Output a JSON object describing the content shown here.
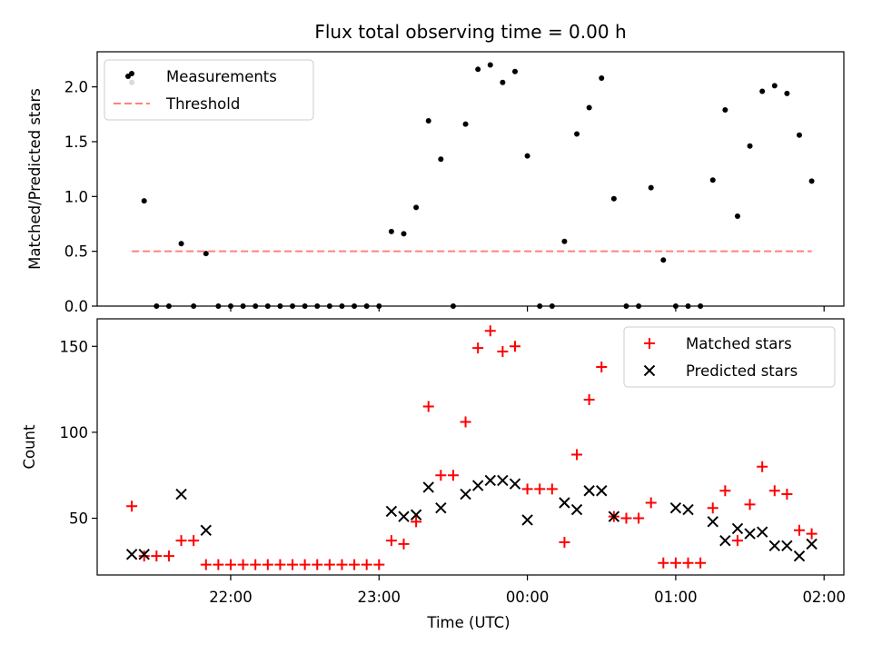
{
  "chart_data": {
    "title": "Flux total observing time = 0.00 h",
    "xlabel": "Time (UTC)",
    "x_ticks": [
      "22:00",
      "23:00",
      "00:00",
      "01:00",
      "02:00"
    ],
    "x_tick_minutes": [
      0,
      60,
      120,
      180,
      240
    ],
    "x_range_minutes": [
      -54,
      248
    ],
    "panels": [
      {
        "type": "scatter",
        "ylabel": "Matched/Predicted stars",
        "ylim": [
          0,
          2.32
        ],
        "y_ticks": [
          "0.0",
          "0.5",
          "1.0",
          "1.5",
          "2.0"
        ],
        "y_tick_values": [
          0,
          0.5,
          1.0,
          1.5,
          2.0
        ],
        "legend_position": "top-left",
        "series": [
          {
            "name": "Measurements",
            "marker": "dot",
            "color": "#000000",
            "x_minutes": [
              -40,
              -35,
              -30,
              -25,
              -20,
              -15,
              -10,
              -5,
              0,
              5,
              10,
              15,
              20,
              25,
              30,
              35,
              40,
              45,
              50,
              55,
              60,
              65,
              70,
              75,
              80,
              85,
              90,
              95,
              100,
              105,
              110,
              115,
              120,
              125,
              130,
              135,
              140,
              145,
              150,
              155,
              160,
              165,
              170,
              175,
              180,
              185,
              190,
              195,
              200,
              205,
              210,
              215,
              220,
              225,
              230,
              235
            ],
            "y": [
              2.04,
              0.96,
              0.0,
              0.0,
              0.57,
              0.0,
              0.48,
              0.0,
              0.0,
              0.0,
              0.0,
              0.0,
              0.0,
              0.0,
              0.0,
              0.0,
              0.0,
              0.0,
              0.0,
              0.0,
              0.0,
              0.68,
              0.66,
              0.9,
              1.69,
              1.34,
              0.0,
              1.66,
              2.16,
              2.2,
              2.04,
              2.14,
              1.37,
              0.0,
              0.0,
              0.59,
              1.57,
              1.81,
              2.08,
              0.98,
              0.0,
              0.0,
              1.08,
              0.42,
              0.0,
              0.0,
              0.0,
              1.15,
              1.79,
              0.82,
              1.46,
              1.96,
              2.01,
              1.94,
              1.56,
              1.14
            ]
          },
          {
            "name": "Threshold",
            "marker": "dashed-line",
            "color": "#ff8080",
            "x_minutes": [
              -40,
              235
            ],
            "y": [
              0.5,
              0.5
            ]
          }
        ]
      },
      {
        "type": "scatter",
        "ylabel": "Count",
        "ylim": [
          17,
          166
        ],
        "y_ticks": [
          "50",
          "100",
          "150"
        ],
        "y_tick_values": [
          50,
          100,
          150
        ],
        "legend_position": "top-right",
        "series": [
          {
            "name": "Matched stars",
            "marker": "plus",
            "color": "#ff0000",
            "x_minutes": [
              -40,
              -35,
              -30,
              -25,
              -20,
              -15,
              -10,
              -5,
              0,
              5,
              10,
              15,
              20,
              25,
              30,
              35,
              40,
              45,
              50,
              55,
              60,
              65,
              70,
              75,
              80,
              85,
              90,
              95,
              100,
              105,
              110,
              115,
              120,
              125,
              130,
              135,
              140,
              145,
              150,
              155,
              160,
              165,
              170,
              175,
              180,
              185,
              190,
              195,
              200,
              205,
              210,
              215,
              220,
              225,
              230,
              235
            ],
            "y": [
              57,
              28,
              28,
              28,
              37,
              37,
              23,
              23,
              23,
              23,
              23,
              23,
              23,
              23,
              23,
              23,
              23,
              23,
              23,
              23,
              23,
              37,
              35,
              48,
              115,
              75,
              75,
              106,
              149,
              159,
              147,
              150,
              67,
              67,
              67,
              36,
              87,
              119,
              138,
              51,
              50,
              50,
              59,
              24,
              24,
              24,
              24,
              56,
              66,
              37,
              58,
              80,
              66,
              64,
              43,
              41
            ]
          },
          {
            "name": "Predicted stars",
            "marker": "x",
            "color": "#000000",
            "x_minutes": [
              -40,
              -35,
              -20,
              -10,
              65,
              70,
              75,
              80,
              85,
              95,
              100,
              105,
              110,
              115,
              120,
              135,
              140,
              145,
              150,
              155,
              180,
              185,
              195,
              200,
              205,
              210,
              215,
              220,
              225,
              230,
              235
            ],
            "y": [
              29,
              29,
              64,
              43,
              54,
              51,
              52,
              68,
              56,
              64,
              69,
              72,
              72,
              70,
              49,
              59,
              55,
              66,
              66,
              51,
              56,
              55,
              48,
              37,
              44,
              41,
              42,
              34,
              34,
              28,
              35
            ]
          }
        ]
      }
    ]
  }
}
